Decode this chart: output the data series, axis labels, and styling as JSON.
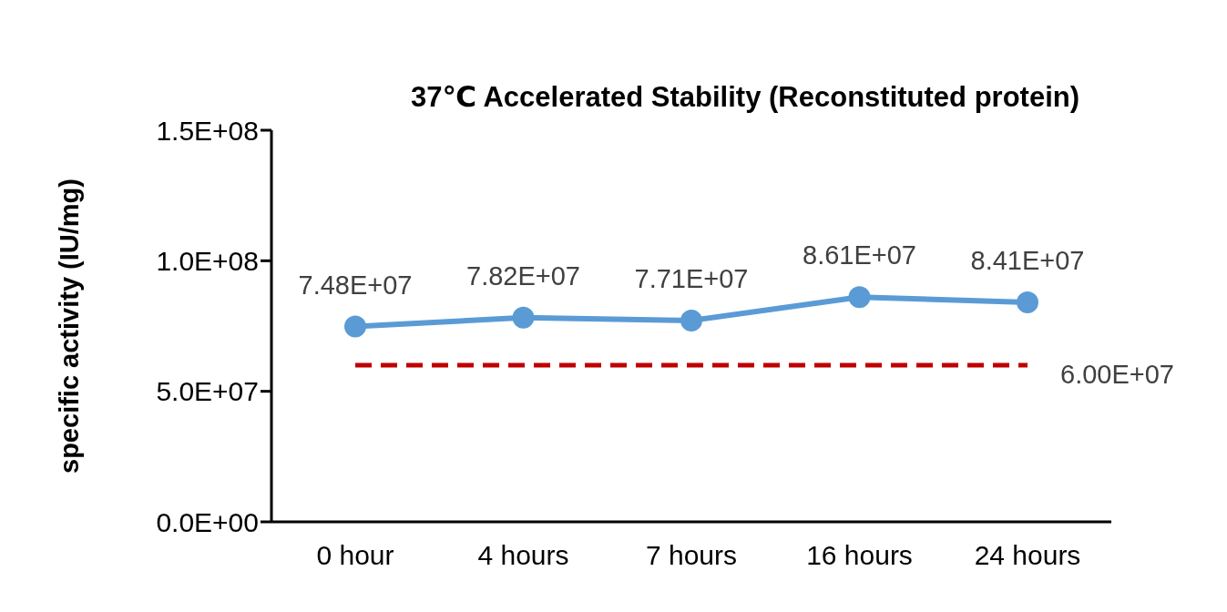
{
  "chart_data": {
    "type": "line",
    "title": "37℃ Accelerated Stability (Reconstituted protein)",
    "ylabel": "specific activity (IU/mg)",
    "categories": [
      "0 hour",
      "4 hours",
      "7 hours",
      "16 hours",
      "24 hours"
    ],
    "series": [
      {
        "color": "#5b9bd5",
        "values": [
          74800000,
          78200000,
          77100000,
          86100000,
          84100000
        ],
        "value_labels": [
          "7.48E+07",
          "7.82E+07",
          "7.71E+07",
          "8.61E+07",
          "8.41E+07"
        ]
      }
    ],
    "ylim": [
      0,
      150000000
    ],
    "yticks": [
      {
        "value": 0,
        "label": "0.0E+00"
      },
      {
        "value": 50000000,
        "label": "5.0E+07"
      },
      {
        "value": 100000000,
        "label": "1.0E+08"
      },
      {
        "value": 150000000,
        "label": "1.5E+08"
      }
    ],
    "ref_lines": [
      {
        "axis": "y",
        "value": 60000000,
        "label": "6.00E+07",
        "color": "#c00000",
        "line_style": "dashed"
      }
    ],
    "marker": "circle",
    "grid": false,
    "legend": false
  }
}
